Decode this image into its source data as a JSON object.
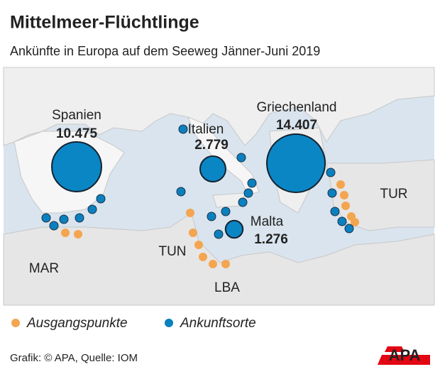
{
  "header": {
    "title": "Mittelmeer-Flüchtlinge",
    "subtitle": "Ankünfte in Europa auf dem Seeweg Jänner-Juni 2019"
  },
  "bubbles": [
    {
      "name": "Spanien",
      "value": 10475,
      "label": "10.475"
    },
    {
      "name": "Italien",
      "value": 2779,
      "label": "2.779"
    },
    {
      "name": "Griechenland",
      "value": 14407,
      "label": "14.407"
    },
    {
      "name": "Malta",
      "value": 1276,
      "label": "1.276"
    }
  ],
  "countries": [
    "TUR",
    "TUN",
    "MAR",
    "LBA"
  ],
  "legend": [
    "Ausgangspunkte",
    "Ankunftsorte"
  ],
  "footer": {
    "source": "Grafik: © APA, Quelle: IOM",
    "logo": "APA"
  }
}
